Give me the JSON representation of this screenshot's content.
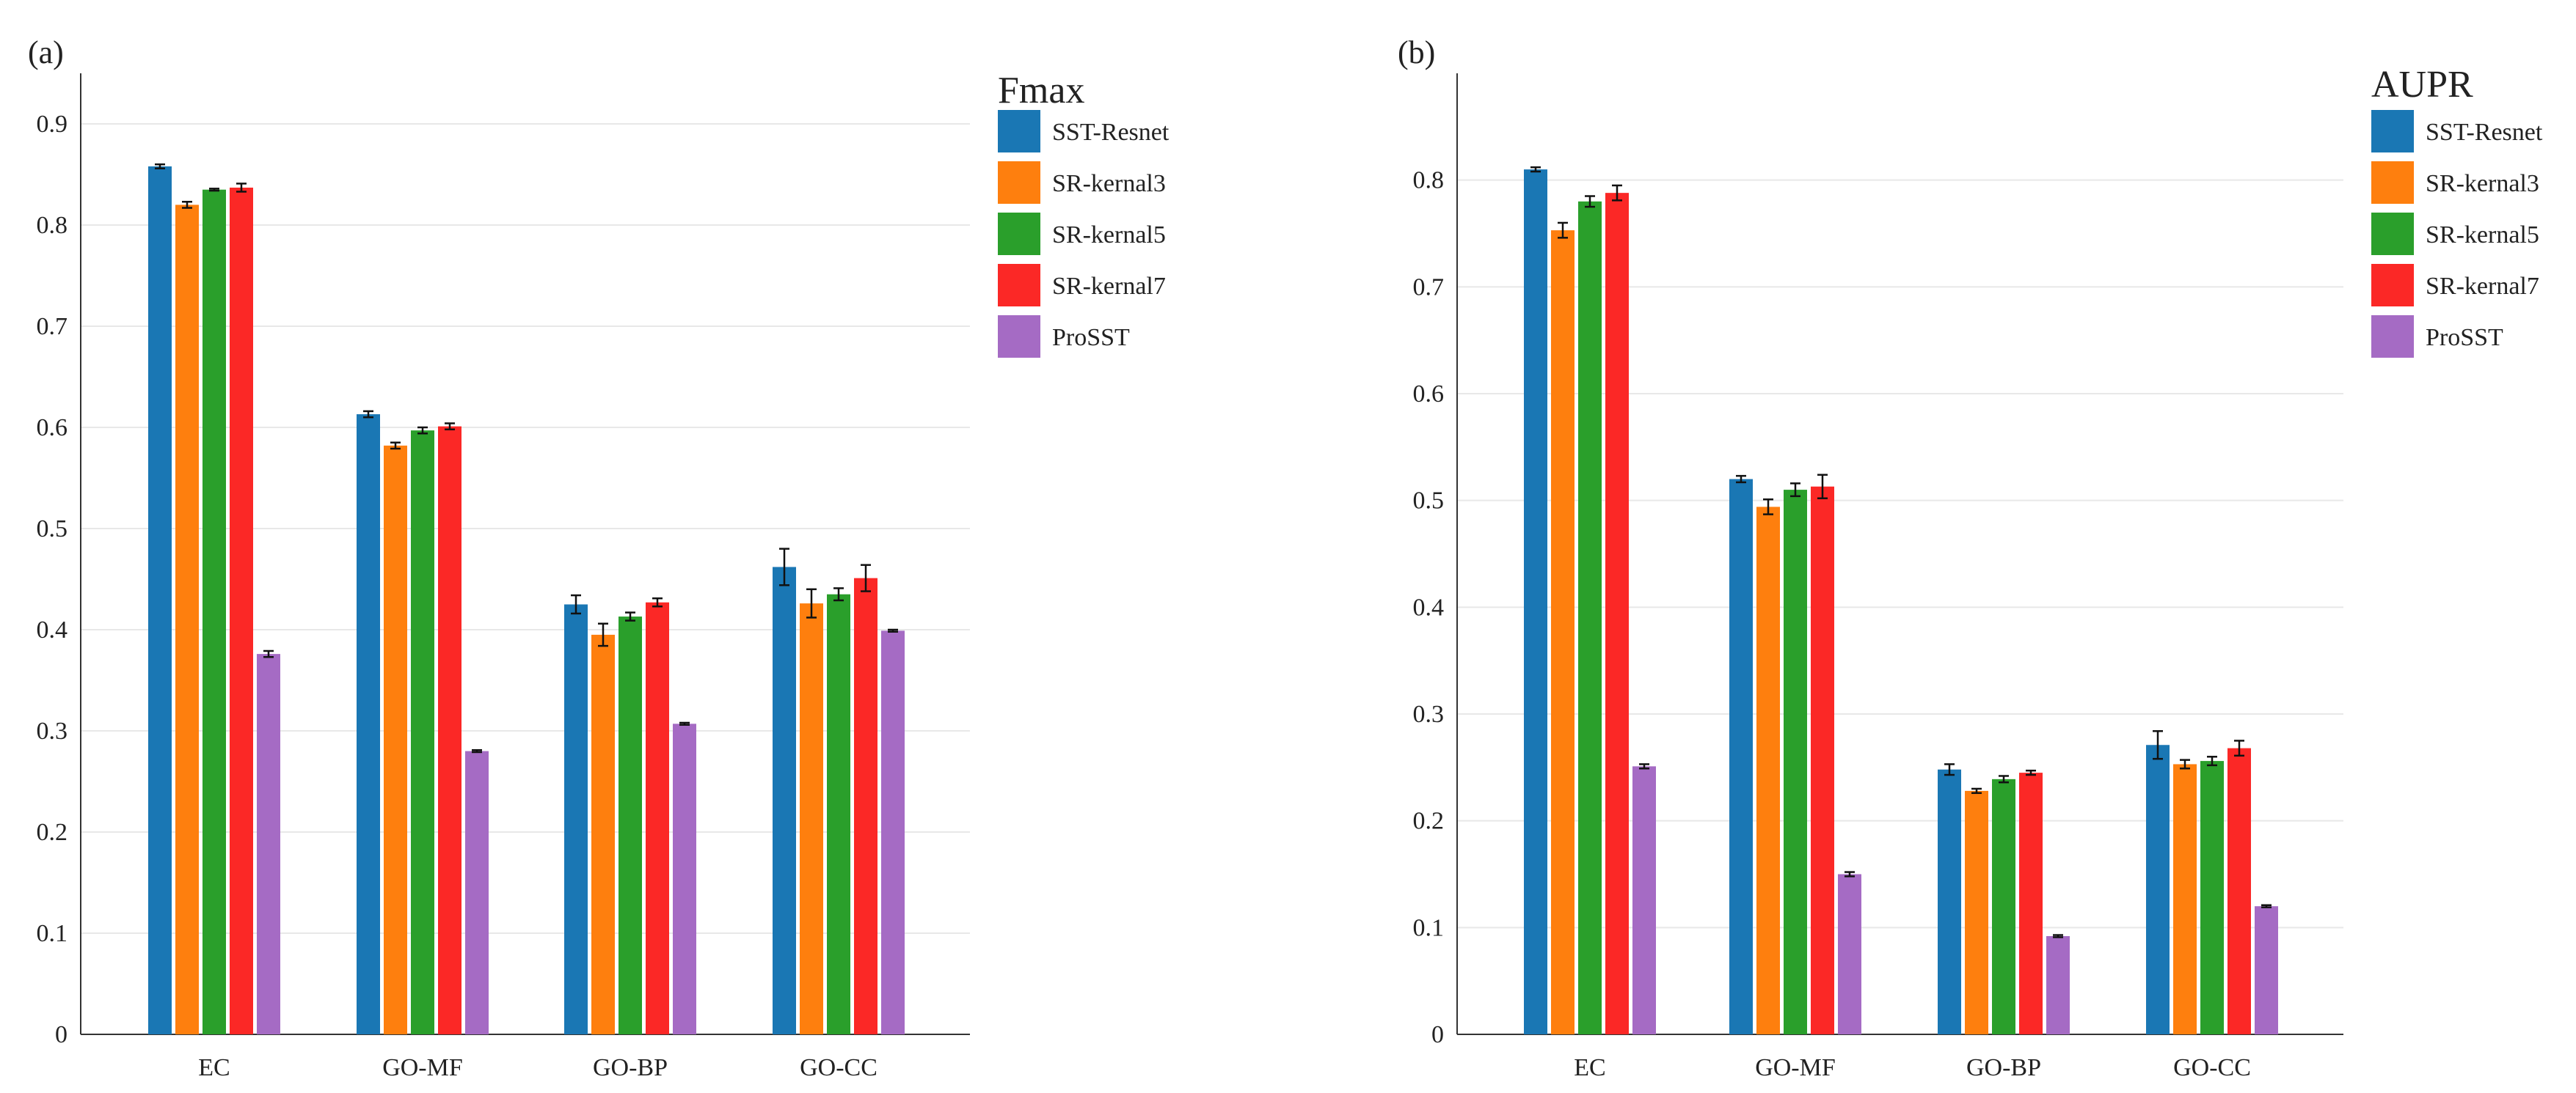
{
  "chart_data": [
    {
      "type": "bar",
      "panel_label": "(a)",
      "title": "Fmax",
      "xlabel": "",
      "ylabel": "",
      "categories": [
        "EC",
        "GO-MF",
        "GO-BP",
        "GO-CC"
      ],
      "ylim": [
        0,
        0.95
      ],
      "yticks": [
        0,
        0.1,
        0.2,
        0.3,
        0.4,
        0.5,
        0.6,
        0.7,
        0.8,
        0.9
      ],
      "ytick_labels": [
        "0",
        "0.1",
        "0.2",
        "0.3",
        "0.4",
        "0.5",
        "0.6",
        "0.7",
        "0.8",
        "0.9"
      ],
      "grid": true,
      "legend_position": "right",
      "series": [
        {
          "name": "SST-Resnet",
          "color": "#1a77b4",
          "values": [
            0.858,
            0.613,
            0.425,
            0.462
          ],
          "errors": [
            0.002,
            0.003,
            0.009,
            0.018
          ]
        },
        {
          "name": "SR-kernal3",
          "color": "#fe7f0e",
          "values": [
            0.82,
            0.582,
            0.395,
            0.426
          ],
          "errors": [
            0.003,
            0.003,
            0.011,
            0.014
          ]
        },
        {
          "name": "SR-kernal5",
          "color": "#2a9f2b",
          "values": [
            0.835,
            0.597,
            0.413,
            0.435
          ],
          "errors": [
            0.001,
            0.003,
            0.004,
            0.006
          ]
        },
        {
          "name": "SR-kernal7",
          "color": "#fb2826",
          "values": [
            0.837,
            0.601,
            0.427,
            0.451
          ],
          "errors": [
            0.004,
            0.003,
            0.004,
            0.013
          ]
        },
        {
          "name": "ProSST",
          "color": "#a56bc4",
          "values": [
            0.376,
            0.28,
            0.307,
            0.399
          ],
          "errors": [
            0.003,
            0.001,
            0.001,
            0.001
          ]
        }
      ]
    },
    {
      "type": "bar",
      "panel_label": "(b)",
      "title": "AUPR",
      "xlabel": "",
      "ylabel": "",
      "categories": [
        "EC",
        "GO-MF",
        "GO-BP",
        "GO-CC"
      ],
      "ylim": [
        0,
        0.9
      ],
      "yticks": [
        0,
        0.1,
        0.2,
        0.3,
        0.4,
        0.5,
        0.6,
        0.7,
        0.8
      ],
      "ytick_labels": [
        "0",
        "0.1",
        "0.2",
        "0.3",
        "0.4",
        "0.5",
        "0.6",
        "0.7",
        "0.8"
      ],
      "grid": true,
      "legend_position": "right",
      "series": [
        {
          "name": "SST-Resnet",
          "color": "#1a77b4",
          "values": [
            0.81,
            0.52,
            0.248,
            0.271
          ],
          "errors": [
            0.002,
            0.003,
            0.005,
            0.013
          ]
        },
        {
          "name": "SR-kernal3",
          "color": "#fe7f0e",
          "values": [
            0.753,
            0.494,
            0.228,
            0.253
          ],
          "errors": [
            0.007,
            0.007,
            0.002,
            0.004
          ]
        },
        {
          "name": "SR-kernal5",
          "color": "#2a9f2b",
          "values": [
            0.78,
            0.51,
            0.239,
            0.256
          ],
          "errors": [
            0.005,
            0.006,
            0.003,
            0.004
          ]
        },
        {
          "name": "SR-kernal7",
          "color": "#fb2826",
          "values": [
            0.788,
            0.513,
            0.245,
            0.268
          ],
          "errors": [
            0.007,
            0.011,
            0.002,
            0.007
          ]
        },
        {
          "name": "ProSST",
          "color": "#a56bc4",
          "values": [
            0.251,
            0.15,
            0.092,
            0.12
          ],
          "errors": [
            0.002,
            0.002,
            0.001,
            0.001
          ]
        }
      ]
    }
  ]
}
